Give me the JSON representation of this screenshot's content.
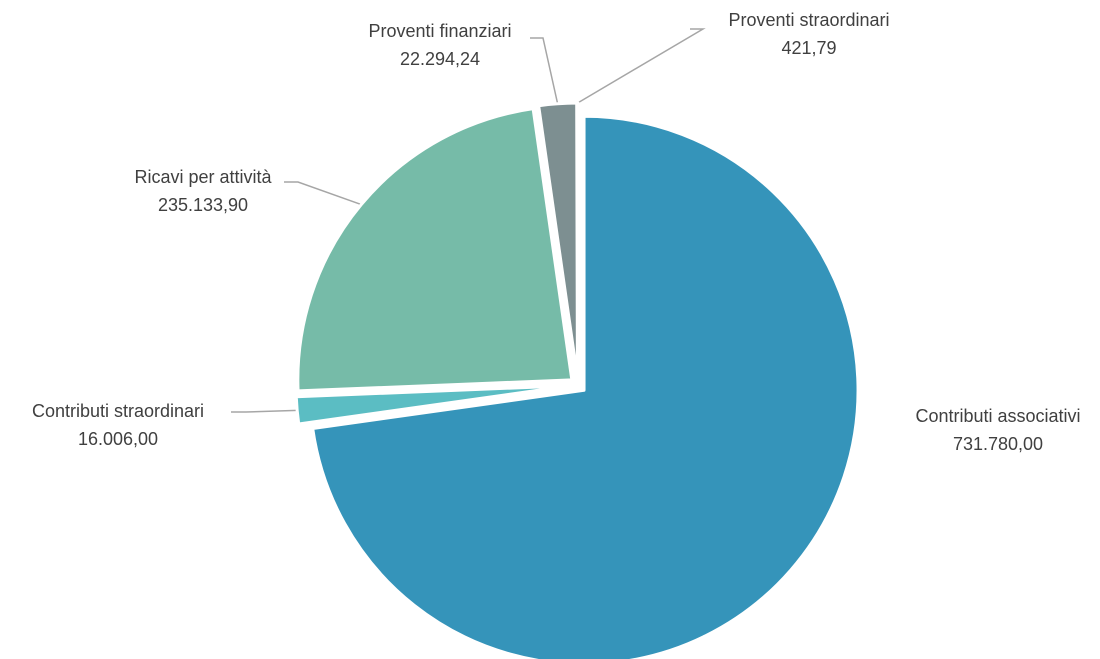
{
  "chart_data": {
    "type": "pie",
    "title": "",
    "start_angle_deg": 0,
    "direction": "clockwise",
    "exploded": true,
    "data_labels": "category and value, with leader lines",
    "slices": [
      {
        "name": "Contributi associativi",
        "value": 731780.0,
        "value_label": "731.780,00",
        "color": "#3594BA"
      },
      {
        "name": "Contributi straordinari",
        "value": 16006.0,
        "value_label": "16.006,00",
        "color": "#5BBDC3"
      },
      {
        "name": "Ricavi per attività",
        "value": 235133.9,
        "value_label": "235.133,90",
        "color": "#76BBA8"
      },
      {
        "name": "Proventi finanziari",
        "value": 22294.24,
        "value_label": "22.294,24",
        "color": "#7D8F91"
      },
      {
        "name": "Proventi straordinari",
        "value": 421.79,
        "value_label": "421,79",
        "color": "#B8CCD0"
      }
    ]
  }
}
